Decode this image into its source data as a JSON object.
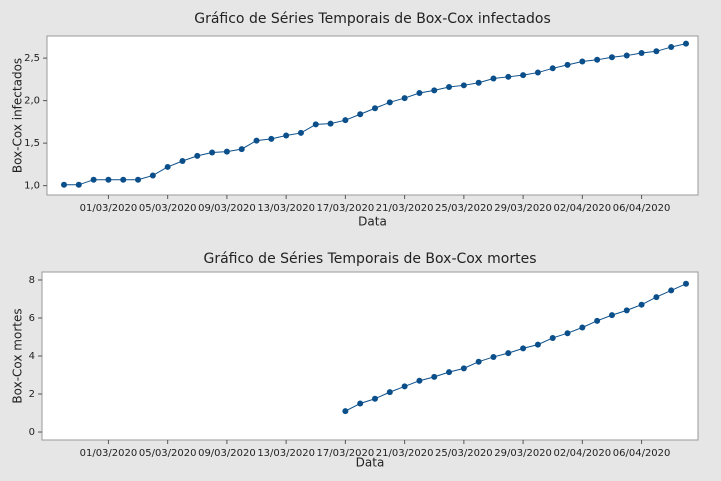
{
  "chart_data": [
    {
      "type": "line",
      "title": "Gráfico de Séries Temporais de Box-Cox infectados",
      "x_label": "Data",
      "y_label": "Box-Cox infectados",
      "categories": [
        null,
        null,
        null,
        "01/03/2020",
        null,
        null,
        null,
        "05/03/2020",
        null,
        null,
        null,
        "09/03/2020",
        null,
        null,
        null,
        "13/03/2020",
        null,
        null,
        null,
        "17/03/2020",
        null,
        null,
        null,
        "21/03/2020",
        null,
        null,
        null,
        "25/03/2020",
        null,
        null,
        null,
        "29/03/2020",
        null,
        null,
        null,
        "02/04/2020",
        null,
        null,
        null,
        "06/04/2020",
        null,
        null,
        null
      ],
      "series": [
        {
          "name": "infectados",
          "color": "#0b4f8a",
          "values": [
            1.01,
            1.01,
            1.07,
            1.07,
            1.07,
            1.07,
            1.12,
            1.22,
            1.29,
            1.35,
            1.39,
            1.4,
            1.43,
            1.53,
            1.55,
            1.59,
            1.62,
            1.72,
            1.73,
            1.77,
            1.84,
            1.91,
            1.98,
            2.03,
            2.09,
            2.12,
            2.16,
            2.18,
            2.21,
            2.26,
            2.28,
            2.3,
            2.33,
            2.38,
            2.42,
            2.46,
            2.48,
            2.51,
            2.53,
            2.56,
            2.58,
            2.63,
            2.67
          ]
        }
      ],
      "ylim": [
        0.89,
        2.76
      ],
      "yticks": [
        {
          "value": 1,
          "label": "1,0"
        },
        {
          "value": 1.5,
          "label": "1,5"
        },
        {
          "value": 2,
          "label": "2,0"
        },
        {
          "value": 2.5,
          "label": "2,5"
        }
      ]
    },
    {
      "type": "line",
      "title": "Gráfico de Séries Temporais de Box-Cox mortes",
      "x_label": "Data",
      "y_label": "Box-Cox mortes",
      "categories": [
        null,
        null,
        null,
        "01/03/2020",
        null,
        null,
        null,
        "05/03/2020",
        null,
        null,
        null,
        "09/03/2020",
        null,
        null,
        null,
        "13/03/2020",
        null,
        null,
        null,
        "17/03/2020",
        null,
        null,
        null,
        "21/03/2020",
        null,
        null,
        null,
        "25/03/2020",
        null,
        null,
        null,
        "29/03/2020",
        null,
        null,
        null,
        "02/04/2020",
        null,
        null,
        null,
        "06/04/2020",
        null,
        null,
        null
      ],
      "series": [
        {
          "name": "mortes",
          "color": "#0b4f8a",
          "values": [
            null,
            null,
            null,
            null,
            null,
            null,
            null,
            null,
            null,
            null,
            null,
            null,
            null,
            null,
            null,
            null,
            null,
            null,
            null,
            1.1,
            1.5,
            1.75,
            2.1,
            2.4,
            2.7,
            2.9,
            3.15,
            3.35,
            3.7,
            3.95,
            4.15,
            4.4,
            4.6,
            4.95,
            5.2,
            5.5,
            5.85,
            6.15,
            6.4,
            6.7,
            7.1,
            7.45,
            7.8
          ]
        }
      ],
      "ylim": [
        -0.42,
        8.42
      ],
      "yticks": [
        0,
        2,
        4,
        6,
        8
      ]
    }
  ]
}
